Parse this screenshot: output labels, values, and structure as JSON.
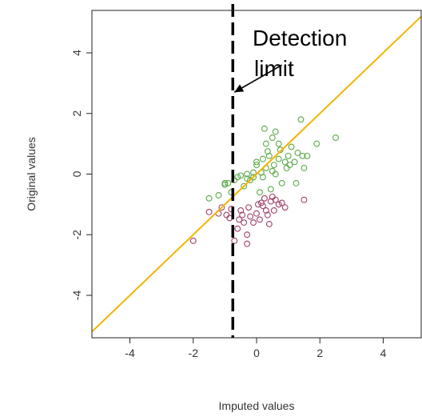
{
  "chart_data": {
    "type": "scatter",
    "title": "",
    "xlabel": "Imputed values",
    "ylabel": "Original values",
    "xlim": [
      -5.2,
      5.2
    ],
    "ylim": [
      -5.4,
      5.4
    ],
    "x_ticks": [
      -4,
      -2,
      0,
      2,
      4
    ],
    "y_ticks": [
      -4,
      -2,
      0,
      2,
      4
    ],
    "x_tick_labels": [
      "-4",
      "-2",
      "0",
      "2",
      "4"
    ],
    "y_tick_labels": [
      "-4",
      "-2",
      "0",
      "2",
      "4"
    ],
    "grid": false,
    "colors": {
      "series_above": "#5aaa46",
      "series_below": "#a0406a",
      "identity_line": "#f2b400",
      "detection_line": "#000000"
    },
    "series": [
      {
        "points": [
          [
            -1.5,
            -0.8
          ],
          [
            -1.2,
            -0.7
          ],
          [
            -1.0,
            -0.3
          ],
          [
            -1.0,
            -0.35
          ],
          [
            -0.9,
            -0.3
          ],
          [
            -0.8,
            -0.6
          ],
          [
            -0.7,
            -0.2
          ],
          [
            -0.6,
            -0.1
          ],
          [
            -0.5,
            -0.05
          ],
          [
            -0.4,
            -0.4
          ],
          [
            -0.3,
            -0.15
          ],
          [
            -0.3,
            0.0
          ],
          [
            -0.2,
            -0.2
          ],
          [
            -0.1,
            -0.1
          ],
          [
            0.0,
            0.4
          ],
          [
            0.0,
            0.3
          ],
          [
            0.1,
            -0.6
          ],
          [
            0.15,
            0.05
          ],
          [
            0.2,
            0.5
          ],
          [
            0.2,
            -0.1
          ],
          [
            0.25,
            1.5
          ],
          [
            0.3,
            1.0
          ],
          [
            0.3,
            0.2
          ],
          [
            0.4,
            0.6
          ],
          [
            0.45,
            -0.5
          ],
          [
            0.5,
            1.2
          ],
          [
            0.5,
            0.1
          ],
          [
            0.55,
            0.3
          ],
          [
            0.6,
            1.4
          ],
          [
            0.6,
            0.0
          ],
          [
            0.7,
            1.0
          ],
          [
            0.7,
            0.5
          ],
          [
            0.75,
            0.8
          ],
          [
            0.8,
            -0.3
          ],
          [
            0.9,
            0.4
          ],
          [
            0.95,
            0.2
          ],
          [
            1.0,
            0.6
          ],
          [
            1.05,
            0.3
          ],
          [
            1.1,
            0.9
          ],
          [
            1.2,
            0.4
          ],
          [
            1.25,
            -0.3
          ],
          [
            1.3,
            0.7
          ],
          [
            1.4,
            1.8
          ],
          [
            1.45,
            0.6
          ],
          [
            1.5,
            0.2
          ],
          [
            1.6,
            0.6
          ],
          [
            1.9,
            1.0
          ],
          [
            2.5,
            1.2
          ],
          [
            -0.1,
            0.05
          ],
          [
            0.35,
            0.75
          ]
        ]
      },
      {
        "points": [
          [
            -2.0,
            -2.2
          ],
          [
            -1.5,
            -1.25
          ],
          [
            -1.2,
            -1.3
          ],
          [
            -1.1,
            -1.1
          ],
          [
            -0.95,
            -1.35
          ],
          [
            -0.8,
            -1.15
          ],
          [
            -0.7,
            -2.2
          ],
          [
            -0.6,
            -1.8
          ],
          [
            -0.5,
            -1.2
          ],
          [
            -0.45,
            -1.35
          ],
          [
            -0.4,
            -1.6
          ],
          [
            -0.3,
            -2.3
          ],
          [
            -0.3,
            -2.0
          ],
          [
            -0.25,
            -1.1
          ],
          [
            -0.2,
            -1.4
          ],
          [
            -0.1,
            -1.6
          ],
          [
            0.0,
            -1.3
          ],
          [
            0.05,
            -1.0
          ],
          [
            0.1,
            -1.5
          ],
          [
            0.2,
            -1.05
          ],
          [
            0.25,
            -0.8
          ],
          [
            0.3,
            -1.2
          ],
          [
            0.4,
            -1.65
          ],
          [
            0.5,
            -0.75
          ],
          [
            0.55,
            -1.2
          ],
          [
            0.6,
            -0.85
          ],
          [
            0.7,
            -1.0
          ],
          [
            0.8,
            -0.95
          ],
          [
            0.9,
            -1.1
          ],
          [
            1.5,
            -0.85
          ],
          [
            -0.55,
            -1.5
          ],
          [
            0.15,
            -0.95
          ],
          [
            0.35,
            -1.35
          ],
          [
            -0.85,
            -1.45
          ],
          [
            0.45,
            -0.9
          ]
        ]
      }
    ],
    "identity_line": {
      "from": [
        -5.2,
        -5.2
      ],
      "to": [
        5.2,
        5.2
      ]
    },
    "detection_limit_x": -0.75,
    "annotation": {
      "line1": "Detection",
      "line2": "limit",
      "arrow_from": [
        0.8,
        3.6
      ],
      "arrow_to": [
        -0.7,
        2.7
      ]
    }
  }
}
